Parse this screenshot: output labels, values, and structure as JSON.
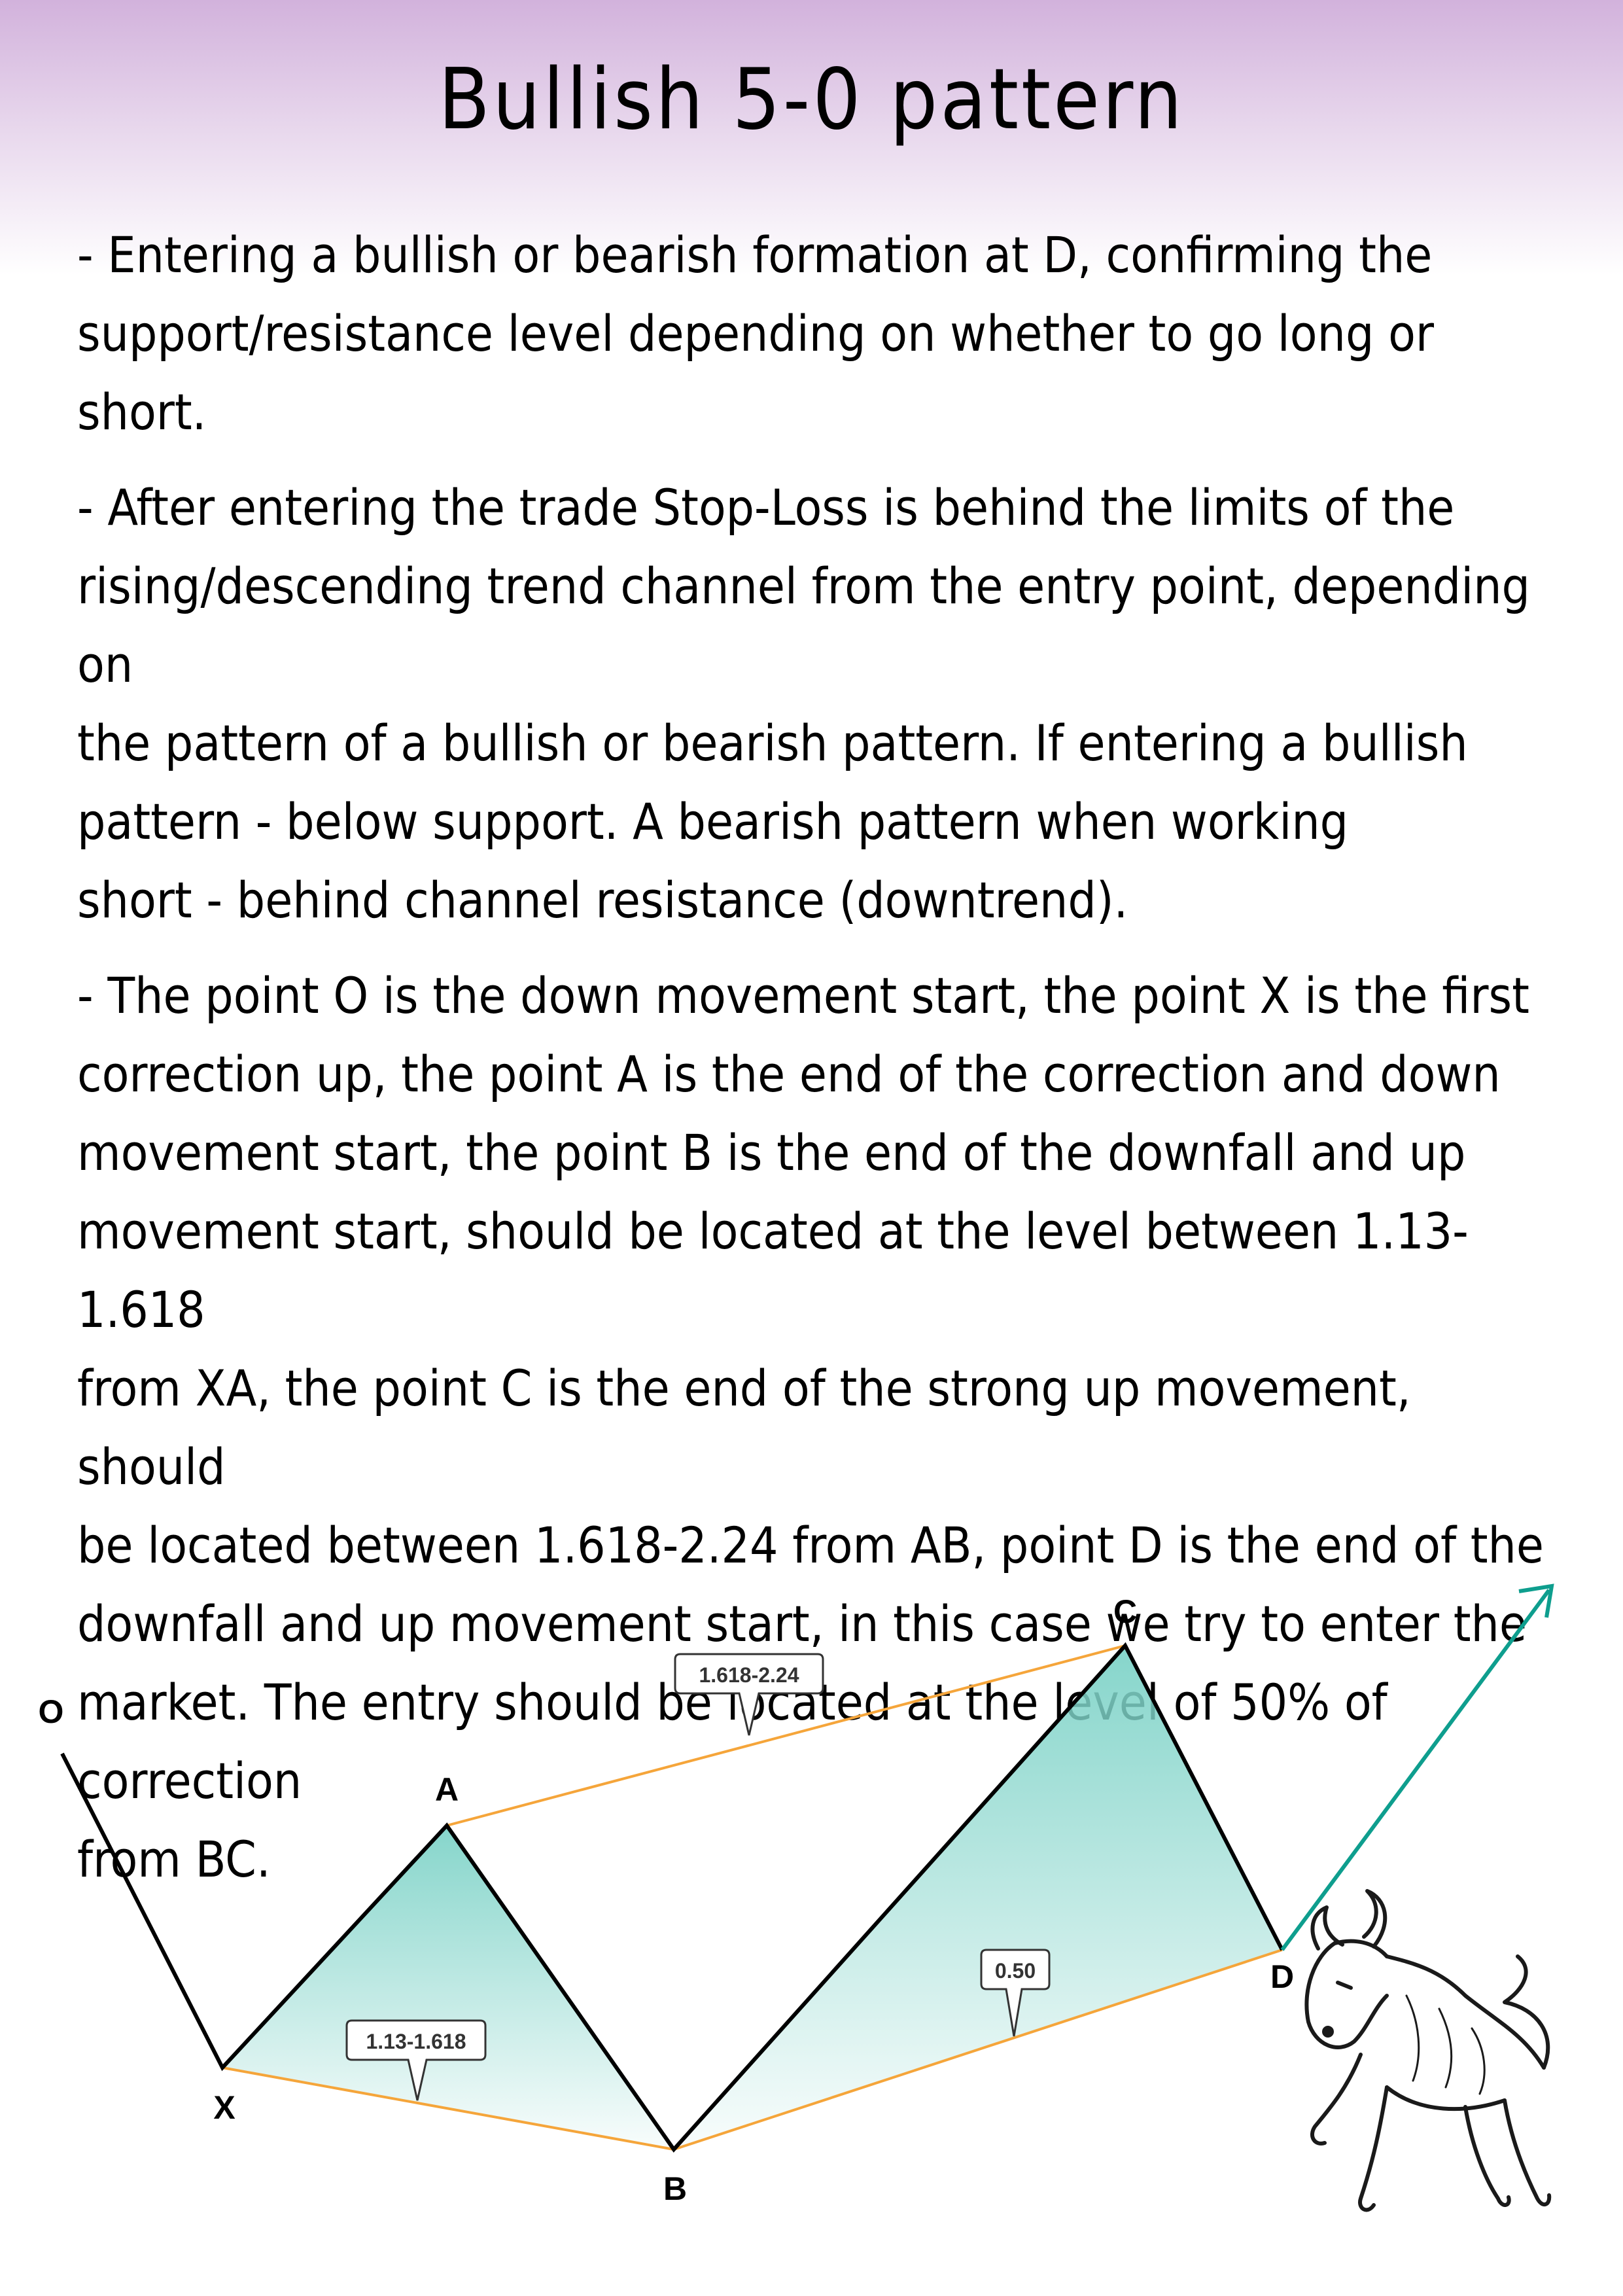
{
  "title": "Bullish 5-0 pattern",
  "paragraphs": [
    "- Entering a bullish or bearish formation at D, confirming the\nsupport/resistance level depending on whether to go long or short.",
    "- After entering the trade Stop-Loss is behind the limits of the\nrising/descending trend channel from the entry point, depending on\nthe pattern of a bullish or bearish pattern. If entering a bullish\npattern - below support. A bearish pattern when working\n short - behind channel resistance (downtrend).",
    "- The point O is the down movement start, the point X is the first\ncorrection up, the point A is the end of the correction and down\nmovement start, the point B is the end of the downfall and up\nmovement start, should be located at the level between 1.13-1.618\n from XA, the point C is the end of the strong up movement, should\nbe located between 1.618-2.24 from AB, point D is the end of the\ndownfall and up movement start, in this case we try to enter the\nmarket. The entry should be located at the level of 50% of correction\nfrom BC."
  ],
  "diagram": {
    "points": {
      "O": "O",
      "X": "X",
      "A": "A",
      "B": "B",
      "C": "C",
      "D": "D"
    },
    "callouts": {
      "xb": "1.13-1.618",
      "ac": "1.618-2.24",
      "bd": "0.50"
    },
    "colors": {
      "zigzag": "#000000",
      "guide": "#f5a53a",
      "fill": "#7fd3c8",
      "arrow": "#0e9e8e"
    },
    "icons": {
      "bull": "bull-illustration"
    }
  }
}
